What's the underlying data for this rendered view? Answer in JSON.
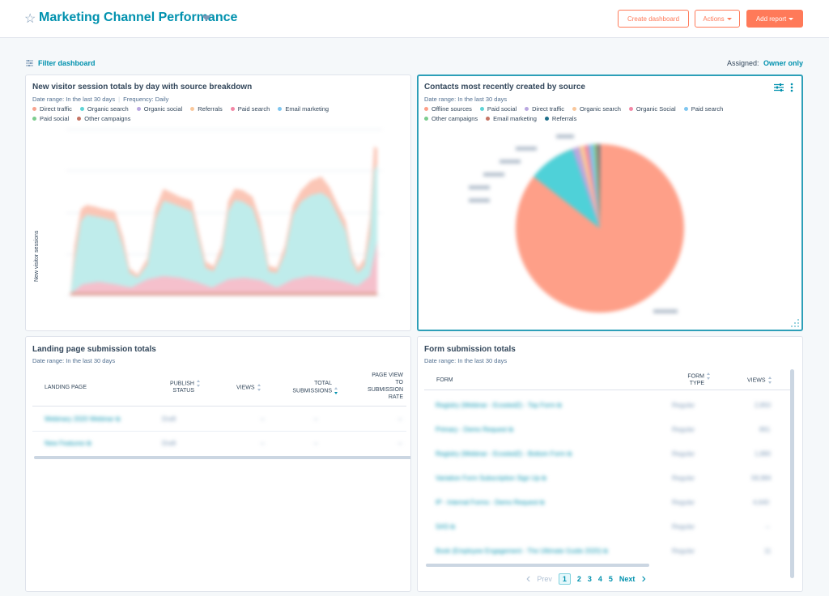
{
  "header": {
    "title": "Marketing Channel Performance",
    "buttons": {
      "create_dashboard": "Create dashboard",
      "actions": "Actions",
      "add_report": "Add report"
    }
  },
  "toolbar": {
    "filter_label": "Filter dashboard",
    "assigned_label": "Assigned:",
    "assigned_value": "Owner only"
  },
  "colors": {
    "direct_traffic": "#f8a48f",
    "organic_search": "#5ed4d6",
    "organic_social": "#b9a7e0",
    "referrals": "#f9c79b",
    "paid_search": "#f287a5",
    "email_marketing": "#7fc6f0",
    "paid_social": "#7ccd8f",
    "other_campaigns": "#c57464",
    "offline_sources": "#fe9f88",
    "referrals_dark": "#1e6f8a",
    "accent": "#0091ae",
    "orange": "#ff7a59"
  },
  "cards": {
    "visitor_sessions": {
      "title": "New visitor session totals by day with source breakdown",
      "date_range": "Date range: In the last 30 days",
      "frequency": "Frequency: Daily",
      "legend": [
        "Direct traffic",
        "Organic search",
        "Organic social",
        "Referrals",
        "Paid search",
        "Email marketing",
        "Paid social",
        "Other campaigns"
      ],
      "ylabel": "New visitor sessions"
    },
    "contacts_by_source": {
      "title": "Contacts most recently created by source",
      "date_range": "Date range: In the last 30 days",
      "legend": [
        "Offline sources",
        "Paid social",
        "Direct traffic",
        "Organic search",
        "Organic Social",
        "Paid search",
        "Other campaigns",
        "Email marketing",
        "Referrals"
      ]
    },
    "landing_pages": {
      "title": "Landing page submission totals",
      "date_range": "Date range: In the last 30 days",
      "columns": {
        "landing_page": "LANDING PAGE",
        "publish_status_1": "PUBLISH",
        "publish_status_2": "STATUS",
        "views": "VIEWS",
        "total_submissions_1": "TOTAL",
        "total_submissions_2": "SUBMISSIONS",
        "page_view_1": "PAGE VIEW",
        "page_view_2": "TO",
        "page_view_3": "SUBMISSION",
        "page_view_4": "RATE"
      }
    },
    "form_submissions": {
      "title": "Form submission totals",
      "date_range": "Date range: In the last 30 days",
      "columns": {
        "form": "FORM",
        "form_type_1": "FORM",
        "form_type_2": "TYPE",
        "views": "VIEWS"
      },
      "pagination": {
        "prev": "Prev",
        "pages": [
          "1",
          "2",
          "3",
          "4",
          "5"
        ],
        "next": "Next"
      }
    }
  }
}
